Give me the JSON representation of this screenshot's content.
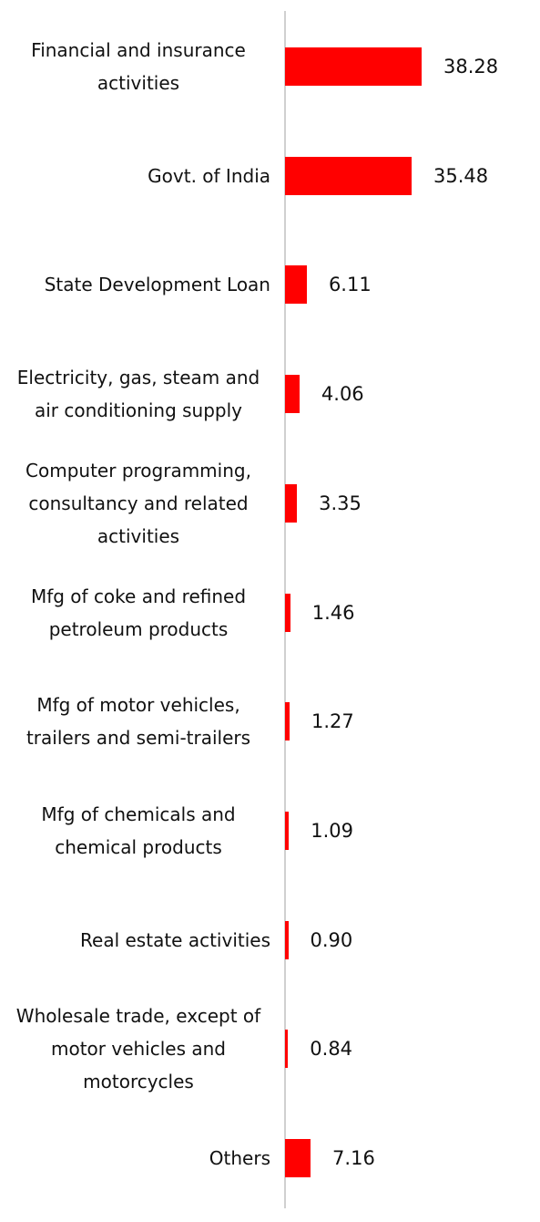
{
  "chart_data": {
    "type": "bar",
    "orientation": "horizontal",
    "categories": [
      "Financial and insurance activities",
      "Govt. of India",
      "State Development Loan",
      "Electricity, gas, steam and air conditioning supply",
      "Computer programming, consultancy and related activities",
      "Mfg of coke and refined petroleum products",
      "Mfg of motor vehicles, trailers and semi-trailers",
      "Mfg of chemicals and chemical products",
      "Real estate activities",
      "Wholesale trade, except of motor vehicles and motorcycles",
      "Others"
    ],
    "values": [
      38.28,
      35.48,
      6.11,
      4.06,
      3.35,
      1.46,
      1.27,
      1.09,
      0.9,
      0.84,
      7.16
    ],
    "value_labels": [
      "38.28",
      "35.48",
      "6.11",
      "4.06",
      "3.35",
      "1.46",
      "1.27",
      "1.09",
      "0.90",
      "0.84",
      "7.16"
    ],
    "color": "#ff0000"
  }
}
